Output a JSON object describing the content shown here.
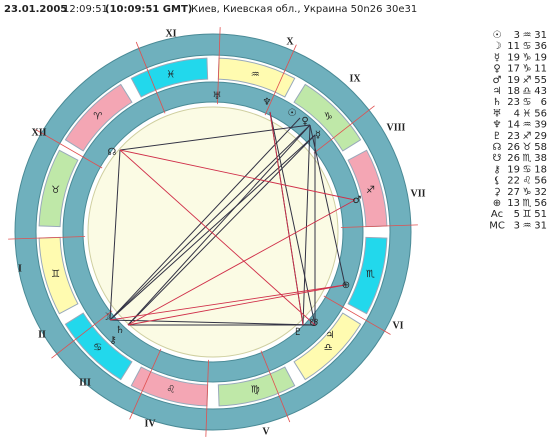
{
  "header": {
    "date": "23.01.2005",
    "time": "12:09:51",
    "gmt": "(10:09:51 GMT)",
    "place": "Киев, Киевская обл., Украина 50n26  30e31"
  },
  "houses": [
    "I",
    "II",
    "III",
    "IV",
    "V",
    "VI",
    "VII",
    "VIII",
    "IX",
    "X",
    "XI",
    "XII"
  ],
  "signs": [
    "♈",
    "♉",
    "♊",
    "♋",
    "♌",
    "♍",
    "♎",
    "♏",
    "♐",
    "♑",
    "♒",
    "♓"
  ],
  "wheel_glyphs": [
    "♅",
    "♆",
    "☉",
    "♀",
    "☿",
    "♂",
    "⊕",
    "♃",
    "☋",
    "♇",
    "☽",
    "♄",
    "⚷",
    "☊"
  ],
  "positions": [
    [
      "☉",
      "3",
      "♒",
      "31"
    ],
    [
      "☽",
      "11",
      "♋",
      "36"
    ],
    [
      "☿",
      "19",
      "♑",
      "19"
    ],
    [
      "♀",
      "17",
      "♑",
      "11"
    ],
    [
      "♂",
      "19",
      "♐",
      "55"
    ],
    [
      "♃",
      "18",
      "♎",
      "43"
    ],
    [
      "♄",
      "23",
      "♋",
      "6"
    ],
    [
      "♅",
      "4",
      "♓",
      "56"
    ],
    [
      "♆",
      "14",
      "♒",
      "39"
    ],
    [
      "♇",
      "23",
      "♐",
      "29"
    ],
    [
      "☊",
      "26",
      "♉",
      "58"
    ],
    [
      "☋",
      "26",
      "♏",
      "38"
    ],
    [
      "⚷",
      "19",
      "♋",
      "18"
    ],
    [
      "⚸",
      "22",
      "♌",
      "56"
    ],
    [
      "⚳",
      "27",
      "♑",
      "32"
    ],
    [
      "⊕",
      "13",
      "♏",
      "56"
    ],
    [
      "Ac",
      "5",
      "♊",
      "51"
    ],
    [
      "MC",
      "3",
      "♒",
      "31"
    ]
  ]
}
